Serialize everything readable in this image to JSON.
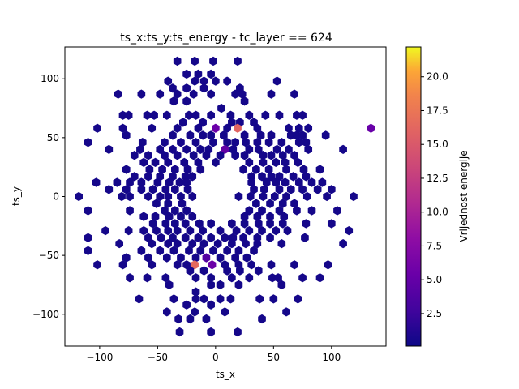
{
  "chart_data": {
    "type": "heatmap",
    "subtype": "hexbin",
    "title": "ts_x:ts_y:ts_energy - tc_layer == 624",
    "xlabel": "ts_x",
    "ylabel": "ts_y",
    "xlim": [
      -130,
      147
    ],
    "ylim": [
      -127,
      127
    ],
    "xticks": [
      -100,
      -50,
      0,
      50,
      100
    ],
    "yticks": [
      -100,
      -50,
      0,
      50,
      100
    ],
    "colorbar": {
      "label": "Vrijednost energije",
      "colormap": "plasma",
      "range": [
        0.1,
        22.2
      ],
      "ticks": [
        2.5,
        5.0,
        7.5,
        10.0,
        12.5,
        15.0,
        17.5,
        20.0
      ],
      "tick_labels": [
        "2.5",
        "5.0",
        "7.5",
        "10.0",
        "12.5",
        "15.0",
        "17.5",
        "20.0"
      ]
    },
    "hex_radius": 3.9,
    "default_value": 0.5,
    "cells": [
      {
        "x": -33,
        "y": 115
      },
      {
        "x": -18,
        "y": 115
      },
      {
        "x": -2,
        "y": 115
      },
      {
        "x": 19,
        "y": 115
      },
      {
        "x": -25,
        "y": 104
      },
      {
        "x": -15,
        "y": 104
      },
      {
        "x": -4,
        "y": 104
      },
      {
        "x": 0,
        "y": 98
      },
      {
        "x": -41,
        "y": 98
      },
      {
        "x": -18,
        "y": 98
      },
      {
        "x": -10,
        "y": 98
      },
      {
        "x": 10,
        "y": 98
      },
      {
        "x": 53,
        "y": 98
      },
      {
        "x": -37,
        "y": 92
      },
      {
        "x": -25,
        "y": 92
      },
      {
        "x": -10,
        "y": 92
      },
      {
        "x": 21,
        "y": 92
      },
      {
        "x": -84,
        "y": 87
      },
      {
        "x": -64,
        "y": 87
      },
      {
        "x": -48,
        "y": 87
      },
      {
        "x": -33,
        "y": 87
      },
      {
        "x": -19,
        "y": 87
      },
      {
        "x": -4,
        "y": 87
      },
      {
        "x": 17,
        "y": 87
      },
      {
        "x": 23,
        "y": 87
      },
      {
        "x": 48,
        "y": 87
      },
      {
        "x": 68,
        "y": 87
      },
      {
        "x": -25,
        "y": 81
      },
      {
        "x": 25,
        "y": 81
      },
      {
        "x": 5,
        "y": 75
      },
      {
        "x": -36,
        "y": 81
      },
      {
        "x": -80,
        "y": 69
      },
      {
        "x": -75,
        "y": 69
      },
      {
        "x": -59,
        "y": 69
      },
      {
        "x": -53,
        "y": 69
      },
      {
        "x": -42,
        "y": 69
      },
      {
        "x": -23,
        "y": 69
      },
      {
        "x": -17,
        "y": 69
      },
      {
        "x": -4,
        "y": 69
      },
      {
        "x": 13,
        "y": 69
      },
      {
        "x": 29,
        "y": 69
      },
      {
        "x": 43,
        "y": 69
      },
      {
        "x": 55,
        "y": 69
      },
      {
        "x": 70,
        "y": 69
      },
      {
        "x": 75,
        "y": 69
      },
      {
        "x": -28,
        "y": 63
      },
      {
        "x": -11,
        "y": 63
      },
      {
        "x": 14,
        "y": 63
      },
      {
        "x": 21,
        "y": 63
      },
      {
        "x": 33,
        "y": 63
      },
      {
        "x": -102,
        "y": 58
      },
      {
        "x": -80,
        "y": 58
      },
      {
        "x": -55,
        "y": 58
      },
      {
        "x": -33,
        "y": 58
      },
      {
        "x": -15,
        "y": 58
      },
      {
        "x": 0,
        "y": 58,
        "value": 5.5
      },
      {
        "x": 10,
        "y": 58
      },
      {
        "x": 19,
        "y": 58,
        "value": 16.0
      },
      {
        "x": 36,
        "y": 58
      },
      {
        "x": 63,
        "y": 58
      },
      {
        "x": 72,
        "y": 58
      },
      {
        "x": 80,
        "y": 58
      },
      {
        "x": -77,
        "y": 52
      },
      {
        "x": -37,
        "y": 52
      },
      {
        "x": -22,
        "y": 52
      },
      {
        "x": -11,
        "y": 52
      },
      {
        "x": -4,
        "y": 52
      },
      {
        "x": 7,
        "y": 52
      },
      {
        "x": 25,
        "y": 52
      },
      {
        "x": 39,
        "y": 52
      },
      {
        "x": 48,
        "y": 52
      },
      {
        "x": 65,
        "y": 52
      },
      {
        "x": 70,
        "y": 52
      },
      {
        "x": 75,
        "y": 52
      },
      {
        "x": -110,
        "y": 46
      },
      {
        "x": -63,
        "y": 46
      },
      {
        "x": -44,
        "y": 46
      },
      {
        "x": -30,
        "y": 46
      },
      {
        "x": -17,
        "y": 46
      },
      {
        "x": -2,
        "y": 46
      },
      {
        "x": 10,
        "y": 46
      },
      {
        "x": 17,
        "y": 46
      },
      {
        "x": 26,
        "y": 46
      },
      {
        "x": 36,
        "y": 46
      },
      {
        "x": 46,
        "y": 46
      },
      {
        "x": 57,
        "y": 46
      },
      {
        "x": 72,
        "y": 46
      },
      {
        "x": 78,
        "y": 46
      },
      {
        "x": 95,
        "y": 52
      },
      {
        "x": -92,
        "y": 40
      },
      {
        "x": -65,
        "y": 40
      },
      {
        "x": -48,
        "y": 40
      },
      {
        "x": -37,
        "y": 40
      },
      {
        "x": -25,
        "y": 40
      },
      {
        "x": -13,
        "y": 40
      },
      {
        "x": -6,
        "y": 40
      },
      {
        "x": 8,
        "y": 40,
        "value": 4.8
      },
      {
        "x": 15,
        "y": 40
      },
      {
        "x": 29,
        "y": 40
      },
      {
        "x": 37,
        "y": 40
      },
      {
        "x": 53,
        "y": 40
      },
      {
        "x": 63,
        "y": 40
      },
      {
        "x": 80,
        "y": 40
      },
      {
        "x": 110,
        "y": 40
      },
      {
        "x": -70,
        "y": 35
      },
      {
        "x": -58,
        "y": 35
      },
      {
        "x": -44,
        "y": 35
      },
      {
        "x": -33,
        "y": 35
      },
      {
        "x": -19,
        "y": 35
      },
      {
        "x": -8,
        "y": 35
      },
      {
        "x": 4,
        "y": 35
      },
      {
        "x": 17,
        "y": 35
      },
      {
        "x": 25,
        "y": 35
      },
      {
        "x": 41,
        "y": 35
      },
      {
        "x": 48,
        "y": 35
      },
      {
        "x": 58,
        "y": 35
      },
      {
        "x": 68,
        "y": 35
      },
      {
        "x": -62,
        "y": 29
      },
      {
        "x": -52,
        "y": 29
      },
      {
        "x": -41,
        "y": 29
      },
      {
        "x": -27,
        "y": 29
      },
      {
        "x": -15,
        "y": 29
      },
      {
        "x": 0,
        "y": 29
      },
      {
        "x": 29,
        "y": 29
      },
      {
        "x": 41,
        "y": 29
      },
      {
        "x": 52,
        "y": 29
      },
      {
        "x": 60,
        "y": 29
      },
      {
        "x": 71,
        "y": 29
      },
      {
        "x": -77,
        "y": 23
      },
      {
        "x": -57,
        "y": 23
      },
      {
        "x": -46,
        "y": 23
      },
      {
        "x": -35,
        "y": 23
      },
      {
        "x": -24,
        "y": 23
      },
      {
        "x": -13,
        "y": 23
      },
      {
        "x": 24,
        "y": 23
      },
      {
        "x": 35,
        "y": 23
      },
      {
        "x": 46,
        "y": 23
      },
      {
        "x": 61,
        "y": 23
      },
      {
        "x": 76,
        "y": 23
      },
      {
        "x": 90,
        "y": 23
      },
      {
        "x": -70,
        "y": 17
      },
      {
        "x": -58,
        "y": 17
      },
      {
        "x": -48,
        "y": 17
      },
      {
        "x": -37,
        "y": 17
      },
      {
        "x": -26,
        "y": 17
      },
      {
        "x": -20,
        "y": 17
      },
      {
        "x": 31,
        "y": 17
      },
      {
        "x": 40,
        "y": 17
      },
      {
        "x": 48,
        "y": 17
      },
      {
        "x": 55,
        "y": 17
      },
      {
        "x": 67,
        "y": 17
      },
      {
        "x": 78,
        "y": 17
      },
      {
        "x": -103,
        "y": 12
      },
      {
        "x": -85,
        "y": 12
      },
      {
        "x": -74,
        "y": 12
      },
      {
        "x": -64,
        "y": 12
      },
      {
        "x": -50,
        "y": 12
      },
      {
        "x": -40,
        "y": 12
      },
      {
        "x": -31,
        "y": 12
      },
      {
        "x": -25,
        "y": 12
      },
      {
        "x": 31,
        "y": 12
      },
      {
        "x": 44,
        "y": 12
      },
      {
        "x": 52,
        "y": 12
      },
      {
        "x": 60,
        "y": 12
      },
      {
        "x": 72,
        "y": 12
      },
      {
        "x": 83,
        "y": 12
      },
      {
        "x": 92,
        "y": 12
      },
      {
        "x": -92,
        "y": 6
      },
      {
        "x": -77,
        "y": 6
      },
      {
        "x": -64,
        "y": 6
      },
      {
        "x": -54,
        "y": 6
      },
      {
        "x": -43,
        "y": 6
      },
      {
        "x": -35,
        "y": 6
      },
      {
        "x": -24,
        "y": 6
      },
      {
        "x": 33,
        "y": 6
      },
      {
        "x": 42,
        "y": 6
      },
      {
        "x": 55,
        "y": 6
      },
      {
        "x": 65,
        "y": 6
      },
      {
        "x": 75,
        "y": 6
      },
      {
        "x": 88,
        "y": 6
      },
      {
        "x": 100,
        "y": 6
      },
      {
        "x": -58,
        "y": 0
      },
      {
        "x": -48,
        "y": 0
      },
      {
        "x": -41,
        "y": 0
      },
      {
        "x": -30,
        "y": 0
      },
      {
        "x": -20,
        "y": 0
      },
      {
        "x": 20,
        "y": 0
      },
      {
        "x": 30,
        "y": 0
      },
      {
        "x": 41,
        "y": 0
      },
      {
        "x": 51,
        "y": 0
      },
      {
        "x": 61,
        "y": 0
      },
      {
        "x": 79,
        "y": 0
      },
      {
        "x": 96,
        "y": 0
      },
      {
        "x": -118,
        "y": 0
      },
      {
        "x": -74,
        "y": 0
      },
      {
        "x": -81,
        "y": 0
      },
      {
        "x": 119,
        "y": 0
      },
      {
        "x": -51,
        "y": -6
      },
      {
        "x": -41,
        "y": -6
      },
      {
        "x": -29,
        "y": -6
      },
      {
        "x": 35,
        "y": -6
      },
      {
        "x": 47,
        "y": -6
      },
      {
        "x": 58,
        "y": -6
      },
      {
        "x": 68,
        "y": -6
      },
      {
        "x": -110,
        "y": -12
      },
      {
        "x": -74,
        "y": -12
      },
      {
        "x": -44,
        "y": -12
      },
      {
        "x": -35,
        "y": -12
      },
      {
        "x": -25,
        "y": -12
      },
      {
        "x": 29,
        "y": -12
      },
      {
        "x": 40,
        "y": -12
      },
      {
        "x": 55,
        "y": -12
      },
      {
        "x": 70,
        "y": -12
      },
      {
        "x": 83,
        "y": -12
      },
      {
        "x": 105,
        "y": -12
      },
      {
        "x": -62,
        "y": -17
      },
      {
        "x": -52,
        "y": -17
      },
      {
        "x": -40,
        "y": -17
      },
      {
        "x": -30,
        "y": -17
      },
      {
        "x": -20,
        "y": -17
      },
      {
        "x": 25,
        "y": -17
      },
      {
        "x": 36,
        "y": -17
      },
      {
        "x": 47,
        "y": -17
      },
      {
        "x": 59,
        "y": -17
      },
      {
        "x": -54,
        "y": -23
      },
      {
        "x": -43,
        "y": -23
      },
      {
        "x": -35,
        "y": -23
      },
      {
        "x": -26,
        "y": -23
      },
      {
        "x": -14,
        "y": -23
      },
      {
        "x": -4,
        "y": -23
      },
      {
        "x": 14,
        "y": -23
      },
      {
        "x": 25,
        "y": -23
      },
      {
        "x": 37,
        "y": -23
      },
      {
        "x": 47,
        "y": -23
      },
      {
        "x": 58,
        "y": -23
      },
      {
        "x": 78,
        "y": -23
      },
      {
        "x": 100,
        "y": -23
      },
      {
        "x": -95,
        "y": -29
      },
      {
        "x": -75,
        "y": -29
      },
      {
        "x": -62,
        "y": -29
      },
      {
        "x": -51,
        "y": -29
      },
      {
        "x": -41,
        "y": -29
      },
      {
        "x": -33,
        "y": -29
      },
      {
        "x": -22,
        "y": -29
      },
      {
        "x": -11,
        "y": -29
      },
      {
        "x": 4,
        "y": -29
      },
      {
        "x": 18,
        "y": -29
      },
      {
        "x": 29,
        "y": -29
      },
      {
        "x": 40,
        "y": -29
      },
      {
        "x": 52,
        "y": -29
      },
      {
        "x": 62,
        "y": -29
      },
      {
        "x": 115,
        "y": -29
      },
      {
        "x": -110,
        "y": -35
      },
      {
        "x": -58,
        "y": -35
      },
      {
        "x": -47,
        "y": -35
      },
      {
        "x": -37,
        "y": -35
      },
      {
        "x": -26,
        "y": -35
      },
      {
        "x": -15,
        "y": -35
      },
      {
        "x": -4,
        "y": -35
      },
      {
        "x": 8,
        "y": -35
      },
      {
        "x": 15,
        "y": -35
      },
      {
        "x": 24,
        "y": -35
      },
      {
        "x": 36,
        "y": -35
      },
      {
        "x": 47,
        "y": -35
      },
      {
        "x": 77,
        "y": -35
      },
      {
        "x": -83,
        "y": -40
      },
      {
        "x": -55,
        "y": -40
      },
      {
        "x": -41,
        "y": -40
      },
      {
        "x": -33,
        "y": -40
      },
      {
        "x": -20,
        "y": -40
      },
      {
        "x": -10,
        "y": -40
      },
      {
        "x": 2,
        "y": -40
      },
      {
        "x": 14,
        "y": -40
      },
      {
        "x": 26,
        "y": -40
      },
      {
        "x": 36,
        "y": -40
      },
      {
        "x": 57,
        "y": -40
      },
      {
        "x": 110,
        "y": -40
      },
      {
        "x": -110,
        "y": -46
      },
      {
        "x": -64,
        "y": -46
      },
      {
        "x": -48,
        "y": -46
      },
      {
        "x": -36,
        "y": -46
      },
      {
        "x": -23,
        "y": -46
      },
      {
        "x": -13,
        "y": -46
      },
      {
        "x": -2,
        "y": -46
      },
      {
        "x": 10,
        "y": -46
      },
      {
        "x": 20,
        "y": -46
      },
      {
        "x": 33,
        "y": -46
      },
      {
        "x": -77,
        "y": -52
      },
      {
        "x": -58,
        "y": -52
      },
      {
        "x": -42,
        "y": -52
      },
      {
        "x": -30,
        "y": -52
      },
      {
        "x": -17,
        "y": -52
      },
      {
        "x": -8,
        "y": -52,
        "value": 4.0
      },
      {
        "x": 4,
        "y": -52
      },
      {
        "x": 17,
        "y": -52
      },
      {
        "x": 27,
        "y": -52
      },
      {
        "x": -102,
        "y": -58
      },
      {
        "x": -80,
        "y": -58
      },
      {
        "x": -55,
        "y": -58
      },
      {
        "x": -33,
        "y": -58
      },
      {
        "x": -25,
        "y": -58
      },
      {
        "x": -18,
        "y": -58,
        "value": 16.5
      },
      {
        "x": -3,
        "y": -58,
        "value": 5.5
      },
      {
        "x": 8,
        "y": -58
      },
      {
        "x": 20,
        "y": -58
      },
      {
        "x": 31,
        "y": -58
      },
      {
        "x": 48,
        "y": -58
      },
      {
        "x": 68,
        "y": -58
      },
      {
        "x": 97,
        "y": -58
      },
      {
        "x": -22,
        "y": -63
      },
      {
        "x": -10,
        "y": -63
      },
      {
        "x": 10,
        "y": -63
      },
      {
        "x": 21,
        "y": -63
      },
      {
        "x": 37,
        "y": -63
      },
      {
        "x": -74,
        "y": -69
      },
      {
        "x": -59,
        "y": -69
      },
      {
        "x": -43,
        "y": -69
      },
      {
        "x": -17,
        "y": -69
      },
      {
        "x": -4,
        "y": -69
      },
      {
        "x": 14,
        "y": -69
      },
      {
        "x": 29,
        "y": -69
      },
      {
        "x": 49,
        "y": -69
      },
      {
        "x": 54,
        "y": -69
      },
      {
        "x": 75,
        "y": -69
      },
      {
        "x": 90,
        "y": -69
      },
      {
        "x": -40,
        "y": -75
      },
      {
        "x": -4,
        "y": -75
      },
      {
        "x": 4,
        "y": -75
      },
      {
        "x": 20,
        "y": -75
      },
      {
        "x": 57,
        "y": -75
      },
      {
        "x": -17,
        "y": -81
      },
      {
        "x": -66,
        "y": -87
      },
      {
        "x": -36,
        "y": -87
      },
      {
        "x": -17,
        "y": -87
      },
      {
        "x": -10,
        "y": -87
      },
      {
        "x": 4,
        "y": -87
      },
      {
        "x": 13,
        "y": -87
      },
      {
        "x": 38,
        "y": -87
      },
      {
        "x": 50,
        "y": -87
      },
      {
        "x": 71,
        "y": -87
      },
      {
        "x": -25,
        "y": -92
      },
      {
        "x": -4,
        "y": -92
      },
      {
        "x": -42,
        "y": -98
      },
      {
        "x": -18,
        "y": -98
      },
      {
        "x": 8,
        "y": -98
      },
      {
        "x": 61,
        "y": -98
      },
      {
        "x": -32,
        "y": -104
      },
      {
        "x": -22,
        "y": -104
      },
      {
        "x": -8,
        "y": -104
      },
      {
        "x": 40,
        "y": -104
      },
      {
        "x": -31,
        "y": -115
      },
      {
        "x": -4,
        "y": -115
      },
      {
        "x": 19,
        "y": -115
      },
      {
        "x": 134,
        "y": 58,
        "value": 5.3
      }
    ]
  }
}
